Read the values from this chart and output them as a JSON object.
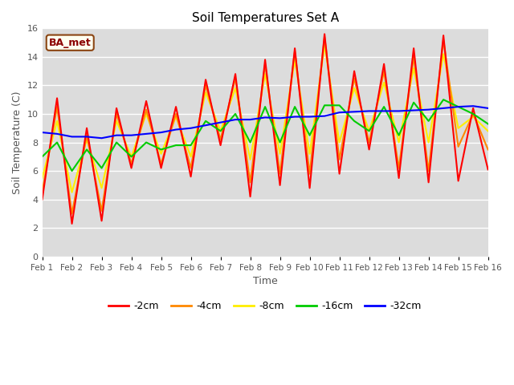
{
  "title": "Soil Temperatures Set A",
  "xlabel": "Time",
  "ylabel": "Soil Temperature (C)",
  "ylim": [
    0,
    16
  ],
  "yticks": [
    0,
    2,
    4,
    6,
    8,
    10,
    12,
    14,
    16
  ],
  "plot_bg_color": "#dcdcdc",
  "grid_color": "#ffffff",
  "legend_label": "BA_met",
  "legend_box_color": "#fffff0",
  "legend_box_border": "#8B4513",
  "xtick_labels": [
    "Feb 1",
    "Feb 2",
    "Feb 3",
    "Feb 4",
    "Feb 5",
    "Feb 6",
    "Feb 7",
    "Feb 8",
    "Feb 9",
    "Feb 10",
    "Feb 11",
    "Feb 12",
    "Feb 13",
    "Feb 14",
    "Feb 15",
    "Feb 16"
  ],
  "series": {
    "-2cm": {
      "color": "#ff0000",
      "zorder": 5,
      "data": [
        4.0,
        11.1,
        2.3,
        9.0,
        2.5,
        10.4,
        6.2,
        10.9,
        6.2,
        10.5,
        5.6,
        12.4,
        7.8,
        12.8,
        4.2,
        13.8,
        5.0,
        14.6,
        4.8,
        15.6,
        5.8,
        13.0,
        7.5,
        13.5,
        5.5,
        14.6,
        5.2,
        15.5,
        5.3,
        10.4,
        6.1
      ]
    },
    "-4cm": {
      "color": "#ff8800",
      "zorder": 4,
      "data": [
        4.5,
        10.5,
        3.0,
        8.5,
        3.2,
        10.0,
        6.5,
        10.3,
        6.5,
        10.0,
        6.2,
        12.0,
        8.2,
        12.5,
        5.2,
        13.5,
        5.8,
        14.4,
        5.8,
        15.4,
        6.8,
        12.5,
        8.0,
        13.0,
        6.2,
        14.0,
        6.0,
        15.2,
        7.7,
        10.0,
        7.5
      ]
    },
    "-8cm": {
      "color": "#ffee00",
      "zorder": 3,
      "data": [
        5.5,
        9.5,
        4.5,
        8.2,
        4.8,
        9.5,
        7.0,
        10.0,
        7.2,
        9.8,
        7.0,
        11.5,
        8.8,
        11.8,
        6.8,
        12.8,
        7.2,
        13.8,
        7.2,
        14.8,
        8.0,
        11.8,
        8.8,
        12.2,
        8.0,
        13.2,
        8.0,
        14.2,
        9.0,
        9.8,
        8.8
      ]
    },
    "-16cm": {
      "color": "#00cc00",
      "zorder": 6,
      "data": [
        7.0,
        8.0,
        6.0,
        7.5,
        6.2,
        8.0,
        7.0,
        8.0,
        7.5,
        7.8,
        7.8,
        9.5,
        8.8,
        10.0,
        8.0,
        10.5,
        8.0,
        10.5,
        8.5,
        10.6,
        10.6,
        9.5,
        8.8,
        10.5,
        8.5,
        10.8,
        9.5,
        11.0,
        10.5,
        10.0,
        9.3
      ]
    },
    "-32cm": {
      "color": "#0000ff",
      "zorder": 7,
      "data": [
        8.7,
        8.6,
        8.4,
        8.4,
        8.3,
        8.5,
        8.5,
        8.6,
        8.7,
        8.9,
        9.0,
        9.2,
        9.4,
        9.6,
        9.6,
        9.75,
        9.7,
        9.8,
        9.8,
        9.85,
        10.1,
        10.15,
        10.2,
        10.2,
        10.2,
        10.25,
        10.3,
        10.4,
        10.5,
        10.55,
        10.4
      ]
    }
  }
}
